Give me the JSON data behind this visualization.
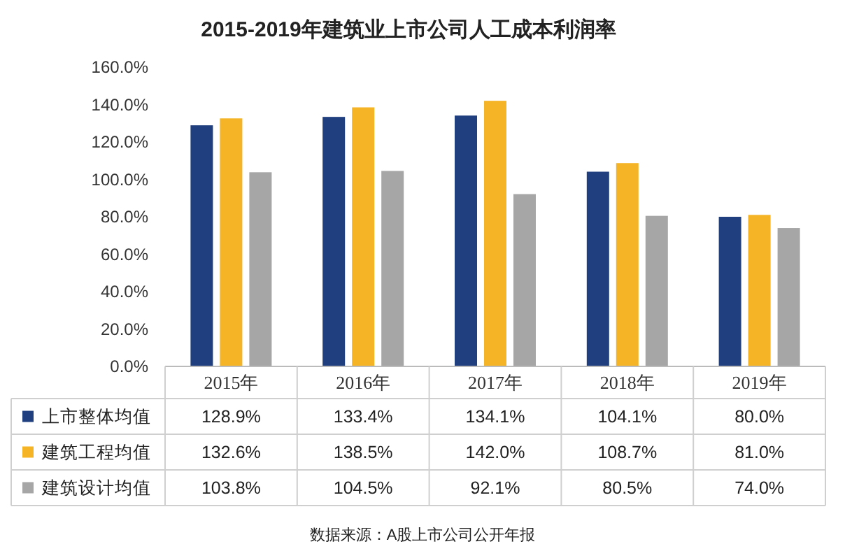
{
  "chart_data": {
    "type": "bar",
    "title": "2015-2019年建筑业上市公司人工成本利润率",
    "categories": [
      "2015年",
      "2016年",
      "2017年",
      "2018年",
      "2019年"
    ],
    "series": [
      {
        "name": "上市整体均值",
        "color": "#1f3f7f",
        "values": [
          128.9,
          133.4,
          134.1,
          104.1,
          80.0
        ],
        "value_labels": [
          "128.9%",
          "133.4%",
          "134.1%",
          "104.1%",
          "80.0%"
        ]
      },
      {
        "name": "建筑工程均值",
        "color": "#f5b425",
        "values": [
          132.6,
          138.5,
          142.0,
          108.7,
          81.0
        ],
        "value_labels": [
          "132.6%",
          "138.5%",
          "142.0%",
          "108.7%",
          "81.0%"
        ]
      },
      {
        "name": "建筑设计均值",
        "color": "#a6a6a6",
        "values": [
          103.8,
          104.5,
          92.1,
          80.5,
          74.0
        ],
        "value_labels": [
          "103.8%",
          "104.5%",
          "92.1%",
          "80.5%",
          "74.0%"
        ]
      }
    ],
    "ylim": [
      0,
      160
    ],
    "yticks": [
      {
        "value": 0,
        "label": "0.0%"
      },
      {
        "value": 20,
        "label": "20.0%"
      },
      {
        "value": 40,
        "label": "40.0%"
      },
      {
        "value": 60,
        "label": "60.0%"
      },
      {
        "value": 80,
        "label": "80.0%"
      },
      {
        "value": 100,
        "label": "100.0%"
      },
      {
        "value": 120,
        "label": "120.0%"
      },
      {
        "value": 140,
        "label": "140.0%"
      },
      {
        "value": 160,
        "label": "160.0%"
      }
    ],
    "legend": "bottom left",
    "annotations": [
      "数据来源：A股上市公司公开年报"
    ]
  }
}
